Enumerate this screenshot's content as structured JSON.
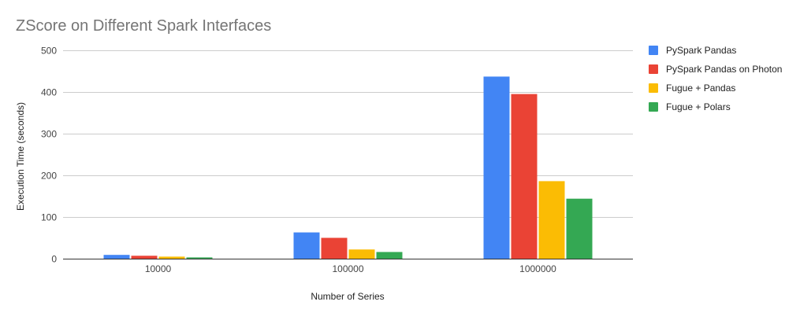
{
  "chart_data": {
    "type": "bar",
    "title": "ZScore on Different Spark Interfaces",
    "xlabel": "Number of Series",
    "ylabel": "Execution Time (seconds)",
    "categories": [
      "10000",
      "100000",
      "1000000"
    ],
    "ylim": [
      0,
      500
    ],
    "yticks": [
      "0",
      "100",
      "200",
      "300",
      "400",
      "500"
    ],
    "grid": true,
    "legend_position": "right",
    "series": [
      {
        "name": "PySpark Pandas",
        "color": "#4285F4",
        "values": [
          9,
          63,
          437
        ]
      },
      {
        "name": "PySpark Pandas on Photon",
        "color": "#EA4335",
        "values": [
          7,
          50,
          395
        ]
      },
      {
        "name": "Fugue + Pandas",
        "color": "#FBBC04",
        "values": [
          5,
          22,
          186
        ]
      },
      {
        "name": "Fugue + Polars",
        "color": "#34A853",
        "values": [
          3,
          16,
          144
        ]
      }
    ]
  }
}
